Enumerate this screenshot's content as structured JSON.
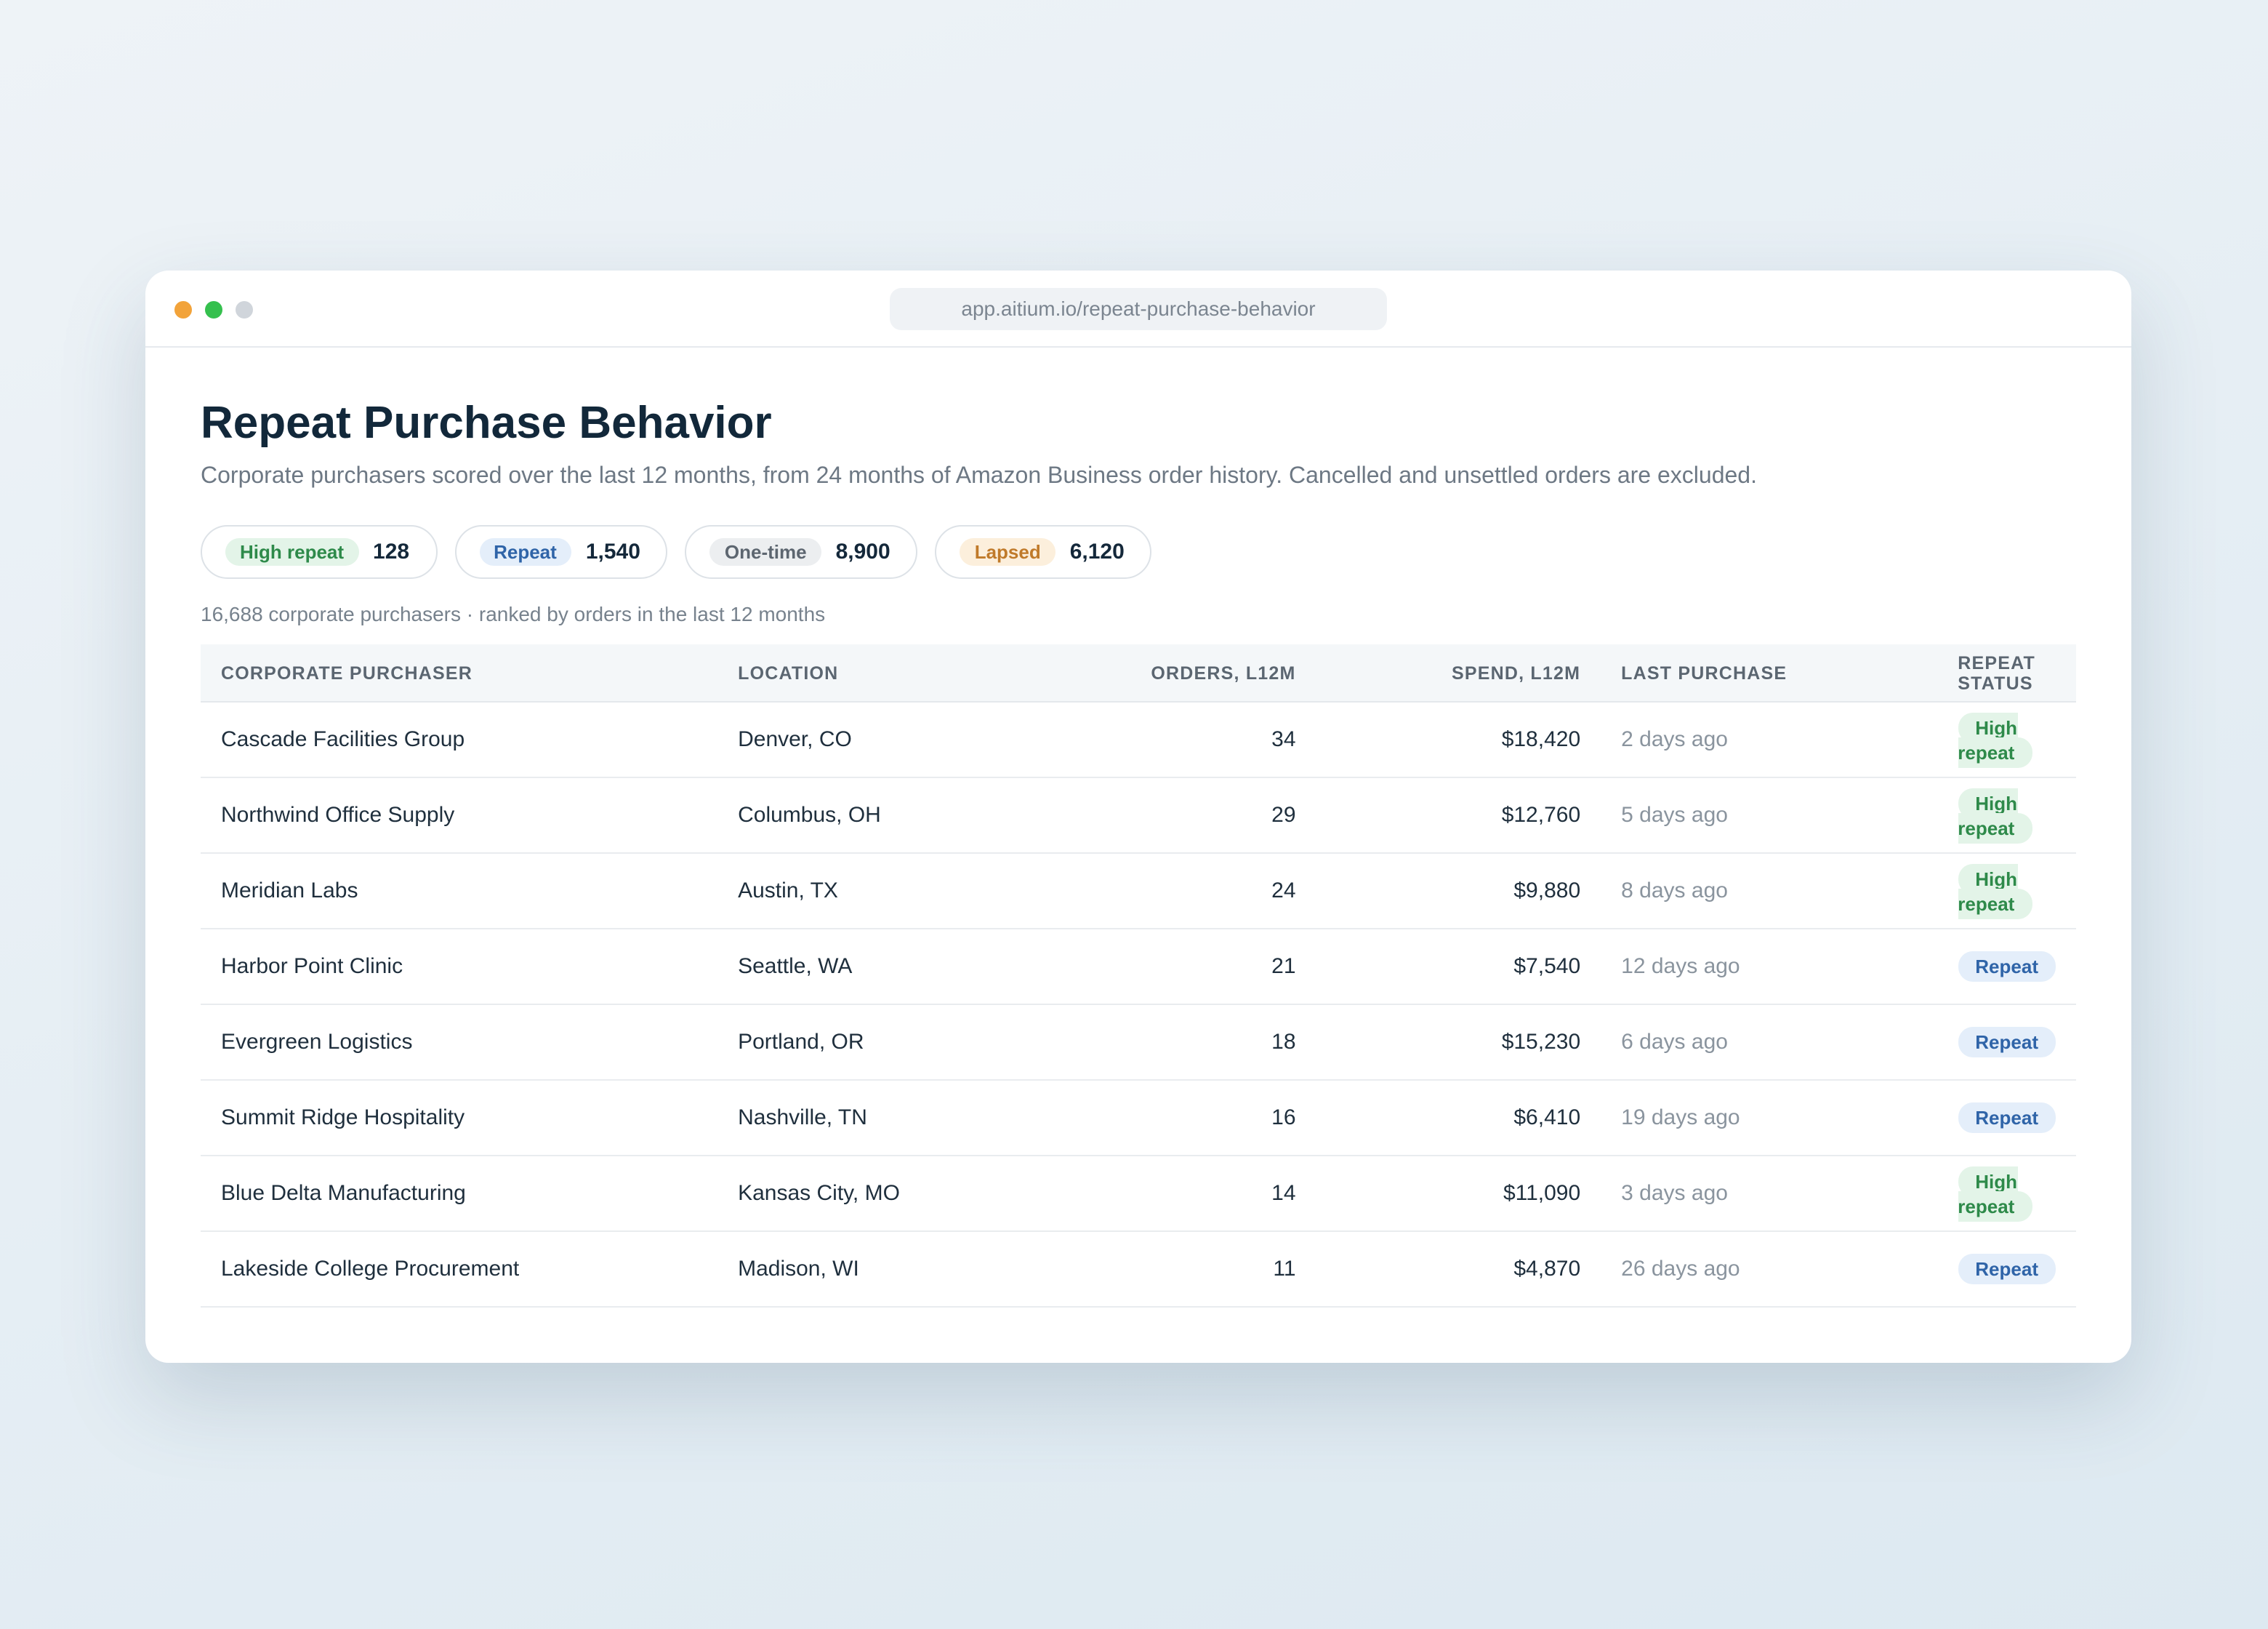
{
  "window": {
    "url": "app.aitium.io/repeat-purchase-behavior"
  },
  "header": {
    "title": "Repeat Purchase Behavior",
    "subtitle": "Corporate purchasers scored over the last 12 months, from 24 months of Amazon Business order history. Cancelled and unsettled orders are excluded."
  },
  "chips": [
    {
      "label": "High repeat",
      "count": "128",
      "color": "#2e8a4a",
      "background": "#e3f4e8"
    },
    {
      "label": "Repeat",
      "count": "1,540",
      "color": "#2f64a8",
      "background": "#e4eefa"
    },
    {
      "label": "One-time",
      "count": "8,900",
      "color": "#5d6670",
      "background": "#eceef0"
    },
    {
      "label": "Lapsed",
      "count": "6,120",
      "color": "#c07a2a",
      "background": "#fcefdc"
    }
  ],
  "summary": "16,688 corporate purchasers · ranked by orders in the last 12 months",
  "table": {
    "headers": [
      "CORPORATE PURCHASER",
      "LOCATION",
      "ORDERS, L12M",
      "SPEND, L12M",
      "LAST PURCHASE",
      "REPEAT STATUS"
    ],
    "rows": [
      [
        "Cascade Facilities Group",
        "Denver, CO",
        "34",
        "$18,420",
        "2 days ago",
        "High repeat"
      ],
      [
        "Northwind Office Supply",
        "Columbus, OH",
        "29",
        "$12,760",
        "5 days ago",
        "High repeat"
      ],
      [
        "Meridian Labs",
        "Austin, TX",
        "24",
        "$9,880",
        "8 days ago",
        "High repeat"
      ],
      [
        "Harbor Point Clinic",
        "Seattle, WA",
        "21",
        "$7,540",
        "12 days ago",
        "Repeat"
      ],
      [
        "Evergreen Logistics",
        "Portland, OR",
        "18",
        "$15,230",
        "6 days ago",
        "Repeat"
      ],
      [
        "Summit Ridge Hospitality",
        "Nashville, TN",
        "16",
        "$6,410",
        "19 days ago",
        "Repeat"
      ],
      [
        "Blue Delta Manufacturing",
        "Kansas City, MO",
        "14",
        "$11,090",
        "3 days ago",
        "High repeat"
      ],
      [
        "Lakeside College Procurement",
        "Madison, WI",
        "11",
        "$4,870",
        "26 days ago",
        "Repeat"
      ]
    ]
  }
}
